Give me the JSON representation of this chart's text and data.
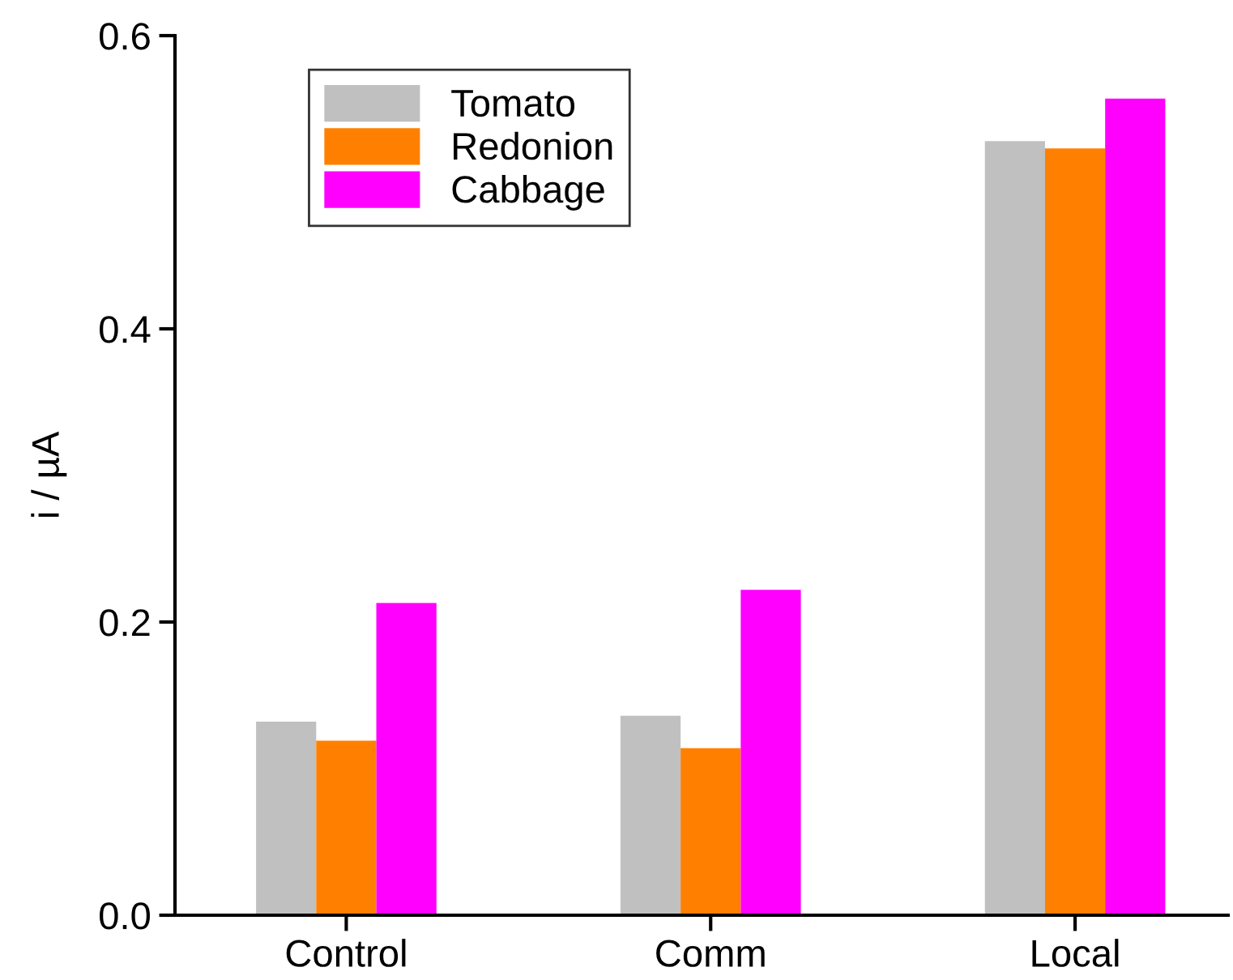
{
  "chart_data": {
    "type": "bar",
    "ylabel": "i / µA",
    "categories": [
      "Control",
      "Comm",
      "Local"
    ],
    "series": [
      {
        "name": "Tomato",
        "color": "#c0c0c0",
        "values": [
          0.132,
          0.136,
          0.528
        ]
      },
      {
        "name": "Redonion",
        "color": "#ff8000",
        "values": [
          0.119,
          0.114,
          0.523
        ]
      },
      {
        "name": "Cabbage",
        "color": "#ff00ff",
        "values": [
          0.213,
          0.222,
          0.557
        ]
      }
    ],
    "ylim": [
      0,
      0.6
    ],
    "yticks": [
      {
        "value": 0,
        "label": "0.0"
      },
      0.2,
      0.4,
      0.6
    ],
    "grid": false,
    "legend": "top left"
  }
}
